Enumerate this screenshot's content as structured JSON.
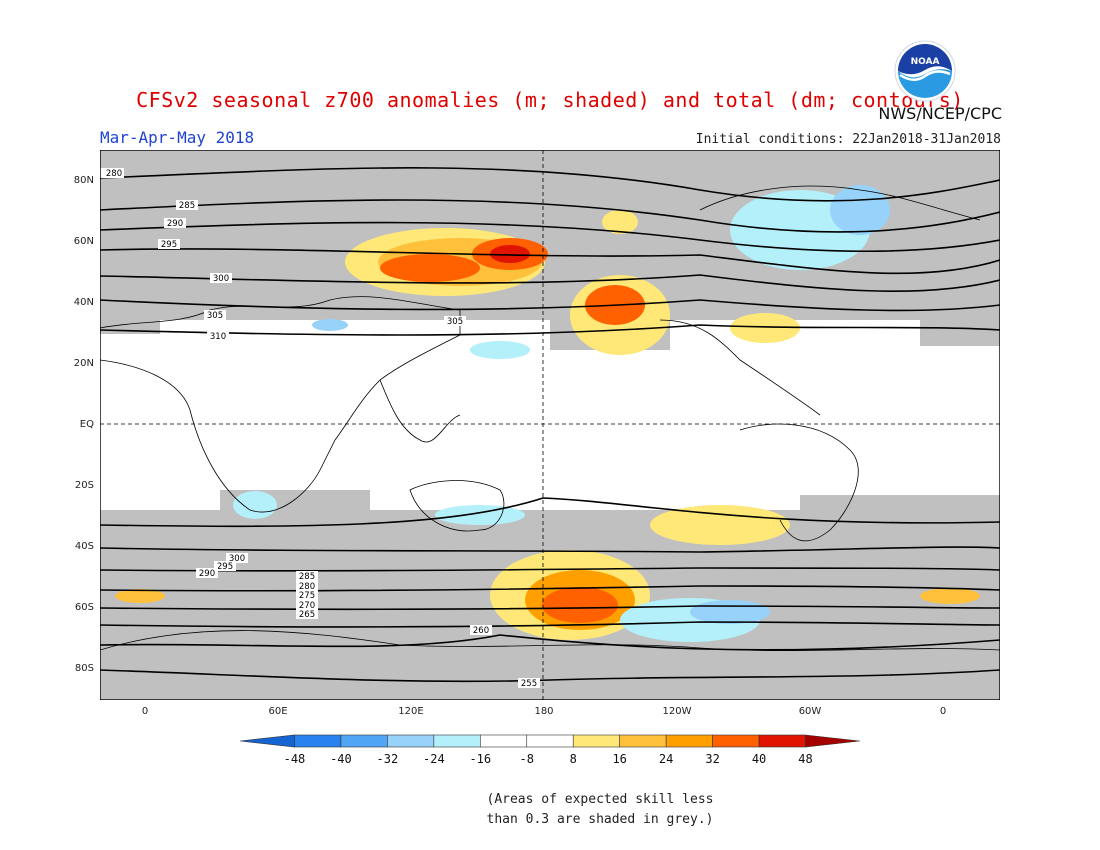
{
  "header": {
    "title": "CFSv2 seasonal z700 anomalies (m; shaded) and total (dm; contours)",
    "agency": "NWS/NCEP/CPC",
    "logo_text": "NOAA",
    "period": "Mar-Apr-May 2018",
    "initial_conditions": "Initial conditions: 22Jan2018-31Jan2018"
  },
  "map": {
    "lat_labels": [
      "80N",
      "60N",
      "40N",
      "20N",
      "EQ",
      "20S",
      "40S",
      "60S",
      "80S"
    ],
    "lon_labels": [
      "0",
      "60E",
      "120E",
      "180",
      "120W",
      "60W",
      "0"
    ],
    "contour_labels": [
      "280",
      "285",
      "290",
      "295",
      "300",
      "305",
      "310",
      "305",
      "300",
      "295",
      "290",
      "285",
      "280",
      "275",
      "270",
      "265",
      "260",
      "255"
    ],
    "colors": {
      "skill_grey": "#c0c0c0",
      "land_outline": "#000000"
    }
  },
  "colorbar": {
    "labels": [
      "-48",
      "-40",
      "-32",
      "-24",
      "-16",
      "-8",
      "8",
      "16",
      "24",
      "32",
      "40",
      "48"
    ],
    "colors": [
      "#1464d2",
      "#2882f0",
      "#50a5f5",
      "#96d2fa",
      "#b4f0fa",
      "#ffffff",
      "#ffffff",
      "#ffe878",
      "#ffc03c",
      "#ffa000",
      "#ff6000",
      "#e11400",
      "#a50000"
    ]
  },
  "footnote": {
    "line1": "(Areas of expected skill less",
    "line2": "than 0.3 are shaded in grey.)"
  }
}
